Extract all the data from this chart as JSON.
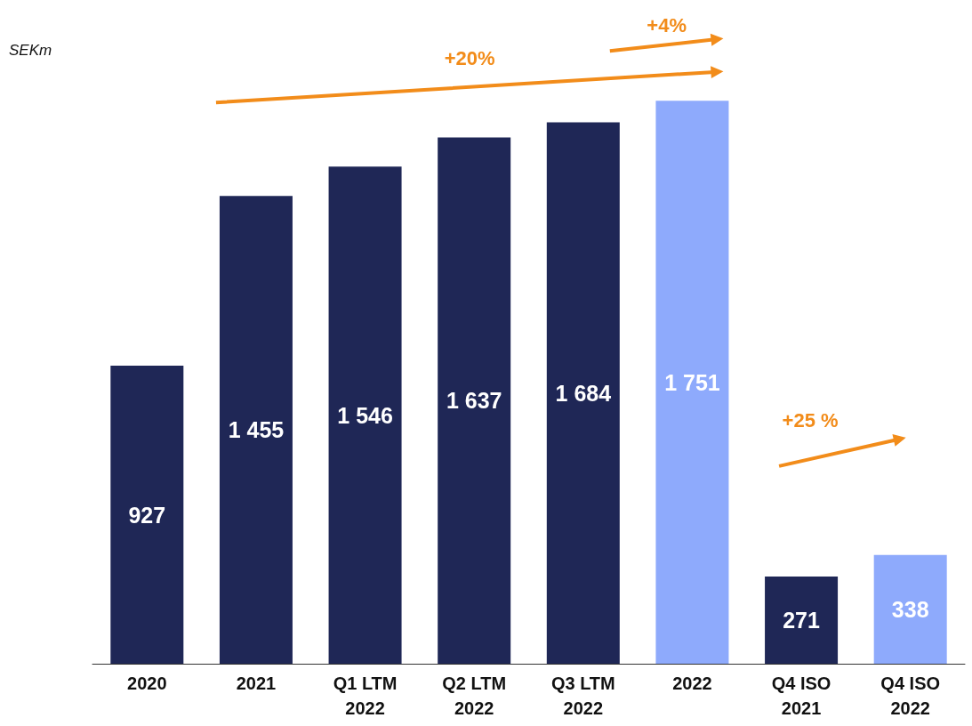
{
  "chart_data": {
    "type": "bar",
    "ylabel": "SEKm",
    "categories": [
      "2020",
      "2021",
      "Q1 LTM\n2022",
      "Q2 LTM\n2022",
      "Q3 LTM\n2022",
      "2022",
      "Q4 ISO\n2021",
      "Q4 ISO\n2022"
    ],
    "values": [
      927,
      1455,
      1546,
      1637,
      1684,
      1751,
      271,
      338
    ],
    "value_labels": [
      "927",
      "1 455",
      "1 546",
      "1 637",
      "1 684",
      "1 751",
      "271",
      "338"
    ],
    "colors": [
      "#1f2756",
      "#1f2756",
      "#1f2756",
      "#1f2756",
      "#1f2756",
      "#8eaafc",
      "#1f2756",
      "#8eaafc"
    ],
    "annotations": [
      "+20%",
      "+4%",
      "+25 %"
    ],
    "tick_labels": "x"
  }
}
